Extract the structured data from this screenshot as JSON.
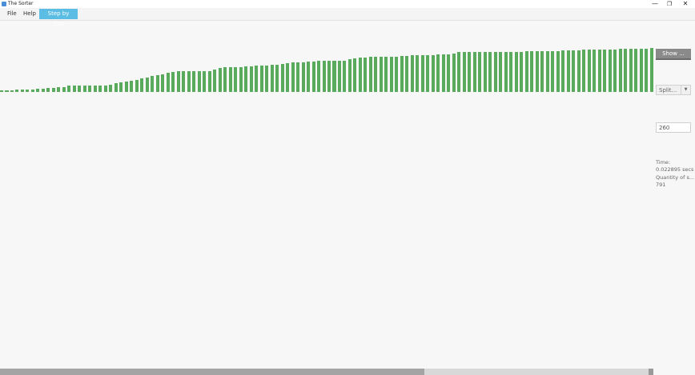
{
  "window": {
    "title": "The Sorter",
    "icon": "app-icon",
    "controls": {
      "minimize": "—",
      "maximize": "❐",
      "close": "✕"
    }
  },
  "menu": {
    "file": "File",
    "help": "Help",
    "step_by_step": "Step by Step"
  },
  "colors": {
    "bar": "#5aaa5e",
    "accent": "#5bbde3",
    "button": "#8a8a8a"
  },
  "controls": {
    "show_label": "Show ...",
    "split_label": "Split...",
    "size_value": "260"
  },
  "stats": {
    "time_label": "Time:",
    "time_value": "0.022895 secs",
    "quantity_label": "Quantity of s...",
    "quantity_value": "791"
  },
  "bars": {
    "scale_max": 56,
    "values": [
      2,
      2,
      2,
      3,
      3,
      3,
      3,
      4,
      4,
      5,
      5,
      6,
      6,
      8,
      8,
      8,
      8,
      8,
      8,
      8,
      8,
      9,
      11,
      12,
      13,
      14,
      15,
      17,
      18,
      20,
      21,
      22,
      24,
      25,
      26,
      26,
      26,
      26,
      26,
      26,
      26,
      29,
      31,
      32,
      32,
      32,
      32,
      33,
      33,
      34,
      34,
      34,
      35,
      35,
      36,
      37,
      38,
      38,
      38,
      39,
      39,
      40,
      40,
      40,
      40,
      40,
      40,
      42,
      43,
      44,
      44,
      45,
      45,
      45,
      45,
      45,
      45,
      46,
      46,
      47,
      47,
      47,
      47,
      47,
      48,
      48,
      48,
      49,
      51,
      51,
      51,
      51,
      51,
      51,
      51,
      51,
      51,
      51,
      51,
      51,
      51,
      52,
      52,
      52,
      52,
      52,
      52,
      52,
      53,
      53,
      53,
      53,
      54,
      54,
      54,
      54,
      54,
      54,
      54,
      55,
      55,
      55,
      55,
      55,
      55,
      56
    ]
  },
  "scrollbar": {
    "position": 0.65
  }
}
